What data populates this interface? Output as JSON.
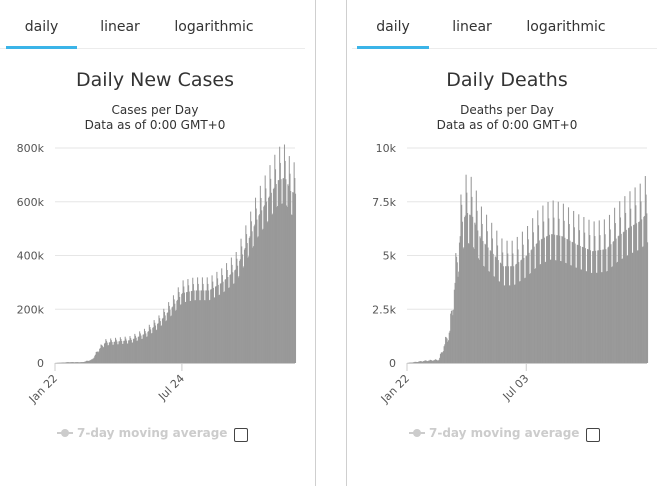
{
  "tabs": [
    "daily",
    "linear",
    "logarithmic"
  ],
  "legend_label": "7-day moving average",
  "bar_color": "#999999",
  "tab_accent": "#3bb4e8",
  "chart_data": [
    {
      "type": "bar",
      "title": "Daily New Cases",
      "subtitle_lines": [
        "Cases per Day",
        "Data as of 0:00 GMT+0"
      ],
      "ylim": [
        0,
        800000
      ],
      "yticks": [
        0,
        200000,
        400000,
        600000,
        800000
      ],
      "ytick_labels": [
        "0",
        "200k",
        "400k",
        "600k",
        "800k"
      ],
      "x_start": "2020-01-22",
      "x_end": "2021-01-04",
      "xtick_labels": [
        {
          "date": "2020-01-22",
          "label": "Jan 22"
        },
        {
          "date": "2020-07-24",
          "label": "Jul 24"
        }
      ],
      "anchors": [
        {
          "date": "2020-01-22",
          "value": 0
        },
        {
          "date": "2020-02-10",
          "value": 3000
        },
        {
          "date": "2020-03-01",
          "value": 3000
        },
        {
          "date": "2020-03-15",
          "value": 12000
        },
        {
          "date": "2020-03-25",
          "value": 50000
        },
        {
          "date": "2020-04-03",
          "value": 75000
        },
        {
          "date": "2020-04-20",
          "value": 80000
        },
        {
          "date": "2020-05-10",
          "value": 85000
        },
        {
          "date": "2020-06-01",
          "value": 110000
        },
        {
          "date": "2020-06-20",
          "value": 150000
        },
        {
          "date": "2020-07-10",
          "value": 210000
        },
        {
          "date": "2020-07-24",
          "value": 260000
        },
        {
          "date": "2020-08-10",
          "value": 270000
        },
        {
          "date": "2020-09-01",
          "value": 270000
        },
        {
          "date": "2020-09-20",
          "value": 300000
        },
        {
          "date": "2020-10-10",
          "value": 350000
        },
        {
          "date": "2020-10-25",
          "value": 440000
        },
        {
          "date": "2020-11-10",
          "value": 540000
        },
        {
          "date": "2020-11-25",
          "value": 610000
        },
        {
          "date": "2020-12-10",
          "value": 680000
        },
        {
          "date": "2020-12-20",
          "value": 690000
        },
        {
          "date": "2020-12-28",
          "value": 640000
        },
        {
          "date": "2021-01-04",
          "value": 630000
        }
      ],
      "weekly_amplitude": 0.15
    },
    {
      "type": "bar",
      "title": "Daily Deaths",
      "subtitle_lines": [
        "Deaths per Day",
        "Data as of 0:00 GMT+0"
      ],
      "ylim": [
        0,
        10000
      ],
      "yticks": [
        0,
        2500,
        5000,
        7500,
        10000
      ],
      "ytick_labels": [
        "0",
        "2.5k",
        "5k",
        "7.5k",
        "10k"
      ],
      "x_start": "2020-01-22",
      "x_end": "2020-12-15",
      "xtick_labels": [
        {
          "date": "2020-01-22",
          "label": "Jan 22"
        },
        {
          "date": "2020-07-03",
          "label": "Jul 03"
        }
      ],
      "anchors": [
        {
          "date": "2020-01-22",
          "value": 0
        },
        {
          "date": "2020-02-15",
          "value": 100
        },
        {
          "date": "2020-03-05",
          "value": 150
        },
        {
          "date": "2020-03-20",
          "value": 1500
        },
        {
          "date": "2020-03-31",
          "value": 5000
        },
        {
          "date": "2020-04-05",
          "value": 6500
        },
        {
          "date": "2020-04-12",
          "value": 7000
        },
        {
          "date": "2020-04-20",
          "value": 6800
        },
        {
          "date": "2020-05-01",
          "value": 5800
        },
        {
          "date": "2020-05-15",
          "value": 5200
        },
        {
          "date": "2020-06-01",
          "value": 4500
        },
        {
          "date": "2020-06-15",
          "value": 4500
        },
        {
          "date": "2020-07-03",
          "value": 5000
        },
        {
          "date": "2020-07-20",
          "value": 5700
        },
        {
          "date": "2020-08-05",
          "value": 6000
        },
        {
          "date": "2020-08-20",
          "value": 5900
        },
        {
          "date": "2020-09-10",
          "value": 5500
        },
        {
          "date": "2020-10-01",
          "value": 5200
        },
        {
          "date": "2020-10-20",
          "value": 5300
        },
        {
          "date": "2020-11-05",
          "value": 5900
        },
        {
          "date": "2020-11-20",
          "value": 6300
        },
        {
          "date": "2020-12-05",
          "value": 6600
        },
        {
          "date": "2020-12-15",
          "value": 7000
        }
      ],
      "weekly_amplitude": 0.22
    }
  ]
}
